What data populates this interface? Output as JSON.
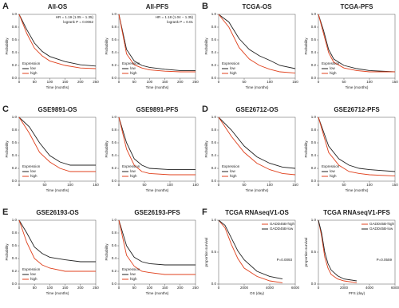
{
  "chart_data": [
    {
      "type": "line",
      "panel_label": "A",
      "title": "All-OS",
      "xlabel": "Time (months)",
      "ylabel": "Probability",
      "legend_title": "Expression",
      "legend": "lower left",
      "annotations": [
        "HR = 1.19 (1.05 − 1.35)",
        "logrank P = 0.0062"
      ],
      "x": [
        0,
        25,
        50,
        75,
        100,
        150,
        200,
        250
      ],
      "xlim": [
        0,
        250
      ],
      "xticks": [
        0,
        50,
        100,
        150,
        200,
        250
      ],
      "ylim": [
        0,
        1
      ],
      "yticks": [
        {
          "value": 0,
          "label": "0.0"
        },
        0.2,
        0.4,
        0.6,
        0.8,
        {
          "value": 1,
          "label": "1.0"
        }
      ],
      "series": [
        {
          "name": "low",
          "color": "#222222",
          "values": [
            1,
            0.76,
            0.55,
            0.42,
            0.34,
            0.26,
            0.21,
            0.19
          ]
        },
        {
          "name": "high",
          "color": "#e0401c",
          "values": [
            1,
            0.7,
            0.47,
            0.35,
            0.27,
            0.2,
            0.16,
            0.15
          ]
        }
      ]
    },
    {
      "type": "line",
      "title": "All-PFS",
      "xlabel": "Time (months)",
      "ylabel": "Probability",
      "legend_title": "Expression",
      "legend": "lower left",
      "annotations": [
        "HR = 1.18 (1.04 − 1.35)",
        "logrank P = 0.01"
      ],
      "x": [
        0,
        25,
        50,
        75,
        100,
        150,
        200,
        250
      ],
      "xlim": [
        0,
        250
      ],
      "xticks": [
        0,
        50,
        100,
        150,
        200,
        250
      ],
      "ylim": [
        0,
        1
      ],
      "yticks": [
        {
          "value": 0,
          "label": "0.0"
        },
        0.2,
        0.4,
        0.6,
        0.8,
        {
          "value": 1,
          "label": "1.0"
        }
      ],
      "series": [
        {
          "name": "low",
          "color": "#222222",
          "values": [
            1,
            0.45,
            0.27,
            0.2,
            0.17,
            0.14,
            0.12,
            0.12
          ]
        },
        {
          "name": "high",
          "color": "#e0401c",
          "values": [
            1,
            0.38,
            0.21,
            0.16,
            0.13,
            0.11,
            0.1,
            0.1
          ]
        }
      ]
    },
    {
      "type": "line",
      "panel_label": "B",
      "title": "TCGA-OS",
      "xlabel": "Time (months)",
      "ylabel": "Probability",
      "legend_title": "Expression",
      "legend": "lower left",
      "x": [
        0,
        20,
        40,
        60,
        80,
        100,
        120,
        150
      ],
      "xlim": [
        0,
        150
      ],
      "xticks": [
        0,
        50,
        100,
        150
      ],
      "ylim": [
        0,
        1
      ],
      "yticks": [
        {
          "value": 0,
          "label": "0.0"
        },
        0.2,
        0.4,
        0.6,
        0.8,
        {
          "value": 1,
          "label": "1.0"
        }
      ],
      "series": [
        {
          "name": "low",
          "color": "#222222",
          "values": [
            1,
            0.88,
            0.62,
            0.45,
            0.35,
            0.28,
            0.2,
            0.15
          ]
        },
        {
          "name": "high",
          "color": "#e0401c",
          "values": [
            1,
            0.8,
            0.48,
            0.3,
            0.2,
            0.14,
            0.1,
            0.08
          ]
        }
      ]
    },
    {
      "type": "line",
      "title": "TCGA-PFS",
      "xlabel": "Time (months)",
      "ylabel": "Probability",
      "legend_title": "Expression",
      "legend": "lower left",
      "x": [
        0,
        10,
        20,
        30,
        50,
        75,
        100,
        150
      ],
      "xlim": [
        0,
        150
      ],
      "xticks": [
        0,
        50,
        100,
        150
      ],
      "ylim": [
        0,
        1
      ],
      "yticks": [
        {
          "value": 0,
          "label": "0.0"
        },
        0.2,
        0.4,
        0.6,
        0.8,
        {
          "value": 1,
          "label": "1.0"
        }
      ],
      "series": [
        {
          "name": "low",
          "color": "#222222",
          "values": [
            1,
            0.75,
            0.45,
            0.3,
            0.2,
            0.15,
            0.12,
            0.1
          ]
        },
        {
          "name": "high",
          "color": "#e0401c",
          "values": [
            1,
            0.7,
            0.4,
            0.25,
            0.16,
            0.12,
            0.1,
            0.1
          ]
        }
      ]
    },
    {
      "type": "line",
      "panel_label": "C",
      "title": "GSE9891-OS",
      "xlabel": "Time (months)",
      "ylabel": "Probability",
      "legend_title": "Expression",
      "legend": "lower left",
      "x": [
        0,
        20,
        40,
        60,
        80,
        100,
        150
      ],
      "xlim": [
        0,
        150
      ],
      "xticks": [
        0,
        50,
        100,
        150
      ],
      "ylim": [
        0,
        1
      ],
      "yticks": [
        {
          "value": 0,
          "label": "0.0"
        },
        0.2,
        0.4,
        0.6,
        0.8,
        {
          "value": 1,
          "label": "1.0"
        }
      ],
      "series": [
        {
          "name": "low",
          "color": "#222222",
          "values": [
            1,
            0.85,
            0.6,
            0.4,
            0.3,
            0.25,
            0.25
          ]
        },
        {
          "name": "high",
          "color": "#e0401c",
          "values": [
            1,
            0.75,
            0.45,
            0.3,
            0.2,
            0.15,
            0.15
          ]
        }
      ]
    },
    {
      "type": "line",
      "title": "GSE9891-PFS",
      "xlabel": "Time (months)",
      "ylabel": "Probability",
      "legend_title": "Expression",
      "legend": "lower left",
      "x": [
        0,
        15,
        30,
        45,
        60,
        100,
        150
      ],
      "xlim": [
        0,
        150
      ],
      "xticks": [
        0,
        50,
        100,
        150
      ],
      "ylim": [
        0,
        1
      ],
      "yticks": [
        {
          "value": 0,
          "label": "0.0"
        },
        0.2,
        0.4,
        0.6,
        0.8,
        {
          "value": 1,
          "label": "1.0"
        }
      ],
      "series": [
        {
          "name": "low",
          "color": "#222222",
          "values": [
            1,
            0.6,
            0.35,
            0.25,
            0.2,
            0.18,
            0.18
          ]
        },
        {
          "name": "high",
          "color": "#e0401c",
          "values": [
            1,
            0.5,
            0.25,
            0.15,
            0.12,
            0.1,
            0.1
          ]
        }
      ]
    },
    {
      "type": "line",
      "panel_label": "D",
      "title": "GSE26712-OS",
      "xlabel": "Time (months)",
      "ylabel": "Probability",
      "legend_title": "Expression",
      "legend": "lower left",
      "x": [
        0,
        25,
        50,
        75,
        100,
        125,
        150
      ],
      "xlim": [
        0,
        150
      ],
      "xticks": [
        0,
        50,
        100,
        150
      ],
      "ylim": [
        0,
        1
      ],
      "yticks": [
        {
          "value": 0,
          "label": "0.0"
        },
        0.2,
        0.4,
        0.6,
        0.8,
        {
          "value": 1,
          "label": "1.0"
        }
      ],
      "series": [
        {
          "name": "low",
          "color": "#222222",
          "values": [
            1,
            0.8,
            0.55,
            0.38,
            0.28,
            0.22,
            0.2
          ]
        },
        {
          "name": "high",
          "color": "#e0401c",
          "values": [
            1,
            0.7,
            0.45,
            0.28,
            0.18,
            0.12,
            0.1
          ]
        }
      ]
    },
    {
      "type": "line",
      "title": "GSE26712-PFS",
      "xlabel": "Time (months)",
      "ylabel": "Probability",
      "legend_title": "Expression",
      "legend": "lower left",
      "x": [
        0,
        20,
        40,
        60,
        80,
        100,
        150
      ],
      "xlim": [
        0,
        150
      ],
      "xticks": [
        0,
        50,
        100,
        150
      ],
      "ylim": [
        0,
        1
      ],
      "yticks": [
        {
          "value": 0,
          "label": "0.0"
        },
        0.2,
        0.4,
        0.6,
        0.8,
        {
          "value": 1,
          "label": "1.0"
        }
      ],
      "series": [
        {
          "name": "low",
          "color": "#222222",
          "values": [
            1,
            0.55,
            0.35,
            0.25,
            0.2,
            0.18,
            0.15
          ]
        },
        {
          "name": "high",
          "color": "#e0401c",
          "values": [
            1,
            0.45,
            0.25,
            0.15,
            0.12,
            0.1,
            0.08
          ]
        }
      ]
    },
    {
      "type": "line",
      "panel_label": "E",
      "title": "GSE26193-OS",
      "xlabel": "Time (months)",
      "ylabel": "Probability",
      "legend_title": "Expression",
      "legend": "lower left",
      "x": [
        0,
        25,
        50,
        75,
        100,
        150,
        200,
        250
      ],
      "xlim": [
        0,
        250
      ],
      "xticks": [
        0,
        50,
        100,
        150,
        200,
        250
      ],
      "ylim": [
        0,
        1
      ],
      "yticks": [
        {
          "value": 0,
          "label": "0.0"
        },
        0.2,
        0.4,
        0.6,
        0.8,
        {
          "value": 1,
          "label": "1.0"
        }
      ],
      "series": [
        {
          "name": "low",
          "color": "#222222",
          "values": [
            1,
            0.8,
            0.58,
            0.48,
            0.42,
            0.38,
            0.35,
            0.35
          ]
        },
        {
          "name": "high",
          "color": "#e0401c",
          "values": [
            1,
            0.65,
            0.4,
            0.3,
            0.25,
            0.2,
            0.2,
            0.2
          ]
        }
      ]
    },
    {
      "type": "line",
      "title": "GSE26193-PFS",
      "xlabel": "Time (months)",
      "ylabel": "Probability",
      "legend_title": "Expression",
      "legend": "lower left",
      "x": [
        0,
        25,
        50,
        75,
        100,
        150,
        200,
        250
      ],
      "xlim": [
        0,
        250
      ],
      "xticks": [
        0,
        50,
        100,
        150,
        200,
        250
      ],
      "ylim": [
        0,
        1
      ],
      "yticks": [
        {
          "value": 0,
          "label": "0.0"
        },
        0.2,
        0.4,
        0.6,
        0.8,
        {
          "value": 1,
          "label": "1.0"
        }
      ],
      "series": [
        {
          "name": "low",
          "color": "#222222",
          "values": [
            1,
            0.6,
            0.42,
            0.35,
            0.32,
            0.3,
            0.3,
            0.3
          ]
        },
        {
          "name": "high",
          "color": "#e0401c",
          "values": [
            1,
            0.45,
            0.28,
            0.2,
            0.18,
            0.15,
            0.15,
            0.15
          ]
        }
      ]
    },
    {
      "type": "line",
      "panel_label": "F",
      "title": "TCGA RNAseqV1-OS",
      "xlabel": "OS (day)",
      "ylabel": "proportion survival",
      "legend": "upper right",
      "annotations": [
        "P=0.0093"
      ],
      "x": [
        0,
        500,
        1000,
        1500,
        2000,
        3000,
        4000,
        5000
      ],
      "xlim": [
        0,
        6000
      ],
      "xticks": [
        0,
        2000,
        4000,
        6000
      ],
      "ylim": [
        0,
        1
      ],
      "yticks": [
        {
          "value": 0,
          "label": "0.0"
        },
        0.5,
        {
          "value": 1,
          "label": "1.0"
        }
      ],
      "series": [
        {
          "name": "GADD45B-high",
          "color": "#e0401c",
          "values": [
            1,
            0.88,
            0.62,
            0.4,
            0.25,
            0.12,
            0.05,
            0.02
          ]
        },
        {
          "name": "GADD45B-low",
          "color": "#222222",
          "values": [
            1,
            0.92,
            0.72,
            0.52,
            0.38,
            0.2,
            0.12,
            0.08
          ]
        }
      ]
    },
    {
      "type": "line",
      "title": "TCGA RNAseqV1-PFS",
      "xlabel": "PFS (day)",
      "ylabel": "proportion survival",
      "legend": "upper right",
      "annotations": [
        "P=0.0559"
      ],
      "x": [
        0,
        250,
        500,
        750,
        1000,
        1500,
        2000,
        3000
      ],
      "xlim": [
        0,
        6000
      ],
      "xticks": [
        0,
        2000,
        4000,
        6000
      ],
      "ylim": [
        0,
        1
      ],
      "yticks": [
        {
          "value": 0,
          "label": "0.0"
        },
        0.5,
        {
          "value": 1,
          "label": "1.0"
        }
      ],
      "series": [
        {
          "name": "GADD45B-high",
          "color": "#e0401c",
          "values": [
            1,
            0.75,
            0.42,
            0.25,
            0.15,
            0.08,
            0.05,
            0.02
          ]
        },
        {
          "name": "GADD45B-low",
          "color": "#222222",
          "values": [
            1,
            0.8,
            0.5,
            0.32,
            0.22,
            0.13,
            0.08,
            0.05
          ]
        }
      ]
    }
  ]
}
